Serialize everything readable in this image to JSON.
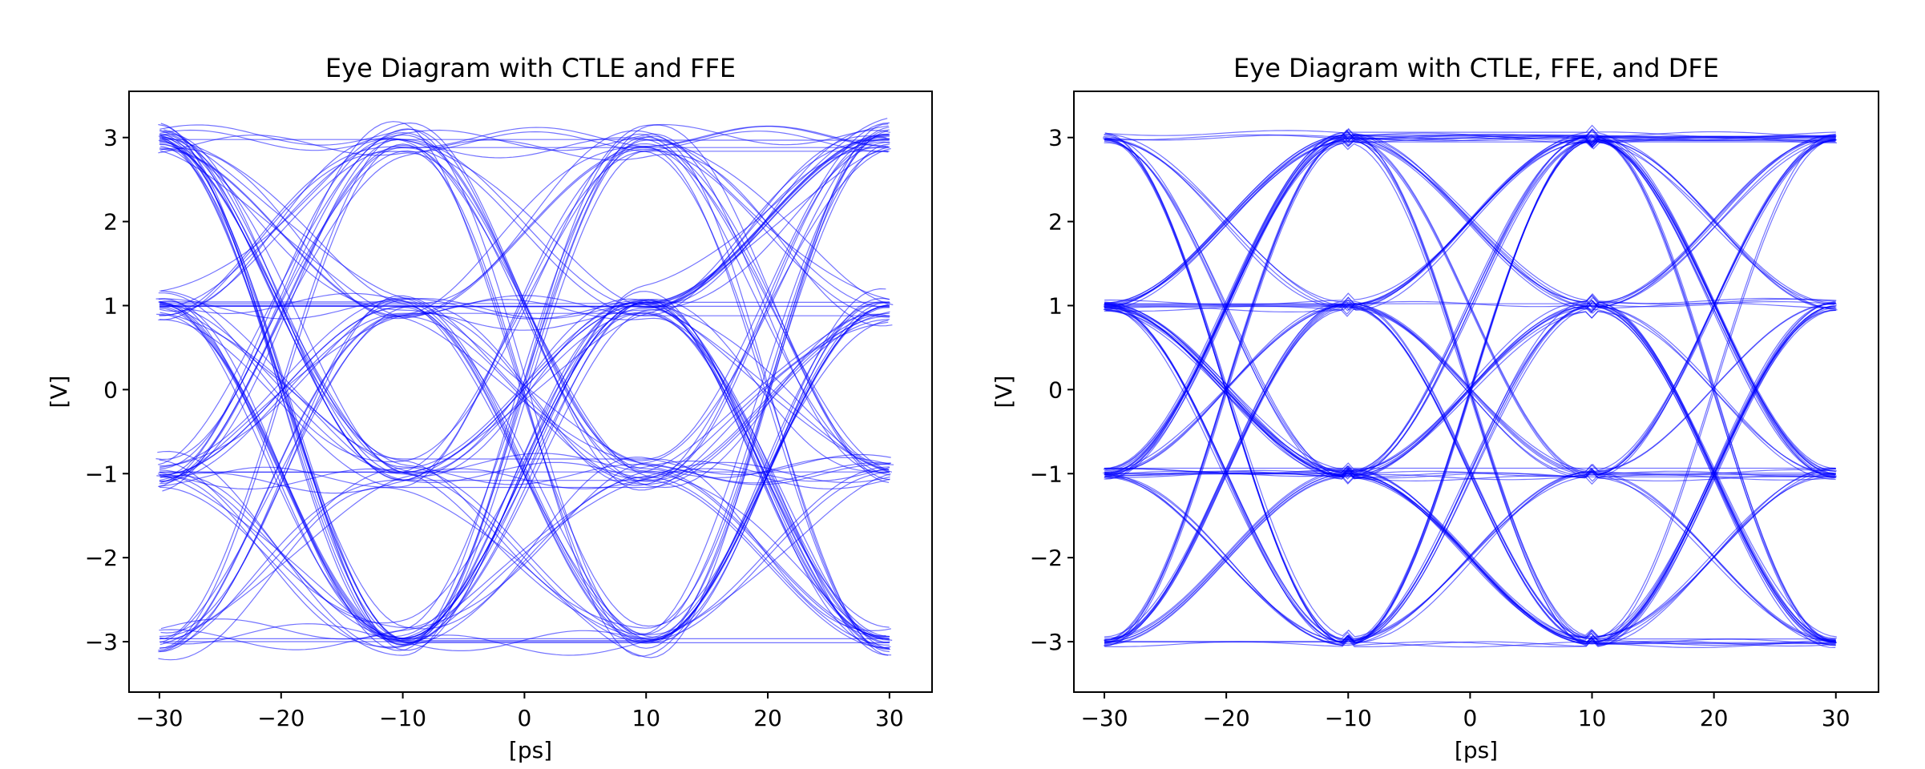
{
  "chart_data": [
    {
      "type": "line",
      "title": "Eye Diagram with CTLE and FFE",
      "xlabel": "[ps]",
      "ylabel": "[V]",
      "xlim": [
        -32.5,
        33.5
      ],
      "ylim": [
        -3.6,
        3.55
      ],
      "x_ticks": [
        -30,
        -20,
        -10,
        0,
        10,
        20,
        30
      ],
      "x_tick_labels": [
        "−30",
        "−20",
        "−10",
        "0",
        "10",
        "20",
        "30"
      ],
      "y_ticks": [
        3,
        2,
        1,
        0,
        -1,
        -2,
        -3
      ],
      "y_tick_labels": [
        "3",
        "2",
        "1",
        "0",
        "−1",
        "−2",
        "−3"
      ],
      "x_range": [
        -30,
        30
      ],
      "unit_interval_ps": 20,
      "crossing_points_ps": [
        -20,
        0,
        20
      ],
      "levels_V": [
        -3,
        -1,
        1,
        3
      ],
      "series_color": "#0000ff",
      "grid": false,
      "spread": 0.18,
      "dfe": false
    },
    {
      "type": "line",
      "title": "Eye Diagram with CTLE, FFE, and DFE",
      "xlabel": "[ps]",
      "ylabel": "[V]",
      "xlim": [
        -32.5,
        33.5
      ],
      "ylim": [
        -3.6,
        3.55
      ],
      "x_ticks": [
        -30,
        -20,
        -10,
        0,
        10,
        20,
        30
      ],
      "x_tick_labels": [
        "−30",
        "−20",
        "−10",
        "0",
        "10",
        "20",
        "30"
      ],
      "y_ticks": [
        3,
        2,
        1,
        0,
        -1,
        -2,
        -3
      ],
      "y_tick_labels": [
        "3",
        "2",
        "1",
        "0",
        "−1",
        "−2",
        "−3"
      ],
      "x_range": [
        -30,
        30
      ],
      "unit_interval_ps": 20,
      "crossing_points_ps": [
        -20,
        0,
        20
      ],
      "levels_V": [
        -3,
        -1,
        1,
        3
      ],
      "series_color": "#0000ff",
      "grid": false,
      "spread": 0.07,
      "dfe": true
    }
  ]
}
